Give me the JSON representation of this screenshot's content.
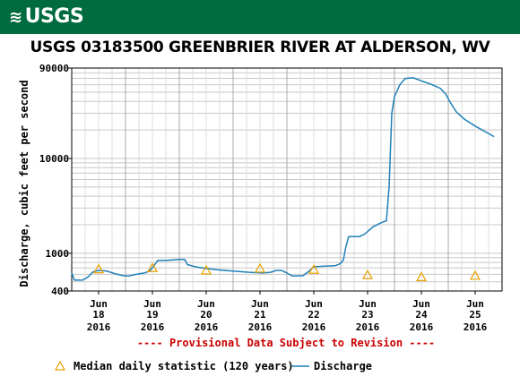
{
  "header": {
    "logo_text": "USGS"
  },
  "chart_data": {
    "type": "line",
    "title": "USGS 03183500 GREENBRIER RIVER AT ALDERSON, WV",
    "ylabel": "Discharge, cubic feet per second",
    "xlabel": "",
    "yscale": "log",
    "ylim": [
      400,
      90000
    ],
    "y_ticks": [
      {
        "value": 90000,
        "label": "90000"
      },
      {
        "value": 10000,
        "label": "10000"
      },
      {
        "value": 1000,
        "label": "1000"
      },
      {
        "value": 400,
        "label": "400"
      }
    ],
    "xlim": [
      0,
      8
    ],
    "x_ticks": [
      {
        "value": 0.5,
        "month": "Jun",
        "day": "18",
        "year": "2016"
      },
      {
        "value": 1.5,
        "month": "Jun",
        "day": "19",
        "year": "2016"
      },
      {
        "value": 2.5,
        "month": "Jun",
        "day": "20",
        "year": "2016"
      },
      {
        "value": 3.5,
        "month": "Jun",
        "day": "21",
        "year": "2016"
      },
      {
        "value": 4.5,
        "month": "Jun",
        "day": "22",
        "year": "2016"
      },
      {
        "value": 5.5,
        "month": "Jun",
        "day": "23",
        "year": "2016"
      },
      {
        "value": 6.5,
        "month": "Jun",
        "day": "24",
        "year": "2016"
      },
      {
        "value": 7.5,
        "month": "Jun",
        "day": "25",
        "year": "2016"
      }
    ],
    "grid": true,
    "legend_position": "bottom",
    "series": [
      {
        "name": "Discharge",
        "color": "#1f7fb8",
        "points": [
          [
            0.0,
            620
          ],
          [
            0.05,
            520
          ],
          [
            0.2,
            520
          ],
          [
            0.3,
            560
          ],
          [
            0.4,
            640
          ],
          [
            0.5,
            660
          ],
          [
            0.65,
            650
          ],
          [
            0.8,
            610
          ],
          [
            0.95,
            580
          ],
          [
            1.05,
            575
          ],
          [
            1.2,
            600
          ],
          [
            1.35,
            620
          ],
          [
            1.45,
            650
          ],
          [
            1.55,
            770
          ],
          [
            1.6,
            840
          ],
          [
            1.75,
            840
          ],
          [
            1.9,
            850
          ],
          [
            2.0,
            860
          ],
          [
            2.1,
            860
          ],
          [
            2.15,
            760
          ],
          [
            2.3,
            720
          ],
          [
            2.5,
            690
          ],
          [
            2.7,
            670
          ],
          [
            3.0,
            650
          ],
          [
            3.3,
            630
          ],
          [
            3.55,
            620
          ],
          [
            3.7,
            630
          ],
          [
            3.8,
            660
          ],
          [
            3.9,
            660
          ],
          [
            4.0,
            620
          ],
          [
            4.1,
            575
          ],
          [
            4.3,
            580
          ],
          [
            4.4,
            640
          ],
          [
            4.5,
            720
          ],
          [
            4.7,
            730
          ],
          [
            4.9,
            740
          ],
          [
            5.0,
            780
          ],
          [
            5.05,
            850
          ],
          [
            5.1,
            1200
          ],
          [
            5.15,
            1500
          ],
          [
            5.35,
            1500
          ],
          [
            5.45,
            1600
          ],
          [
            5.6,
            1900
          ],
          [
            5.75,
            2100
          ],
          [
            5.85,
            2200
          ],
          [
            5.9,
            5000
          ],
          [
            5.95,
            30000
          ],
          [
            6.0,
            45000
          ],
          [
            6.1,
            60000
          ],
          [
            6.2,
            70000
          ],
          [
            6.35,
            71000
          ],
          [
            6.5,
            66000
          ],
          [
            6.7,
            60000
          ],
          [
            6.85,
            55000
          ],
          [
            6.95,
            48000
          ],
          [
            7.05,
            38000
          ],
          [
            7.15,
            31000
          ],
          [
            7.3,
            26000
          ],
          [
            7.5,
            22000
          ],
          [
            7.7,
            19000
          ],
          [
            7.85,
            17000
          ]
        ]
      }
    ],
    "median_points": {
      "name": "Median daily statistic (120 years)",
      "color": "#e8a000",
      "points": [
        [
          0.5,
          680
        ],
        [
          1.5,
          700
        ],
        [
          2.5,
          660
        ],
        [
          3.5,
          690
        ],
        [
          4.5,
          670
        ],
        [
          5.5,
          590
        ],
        [
          6.5,
          560
        ],
        [
          7.5,
          580
        ]
      ]
    },
    "annotation": "---- Provisional Data Subject to Revision ----",
    "legend": {
      "median_label": "Median daily statistic (120 years)",
      "discharge_label": "Discharge"
    }
  }
}
